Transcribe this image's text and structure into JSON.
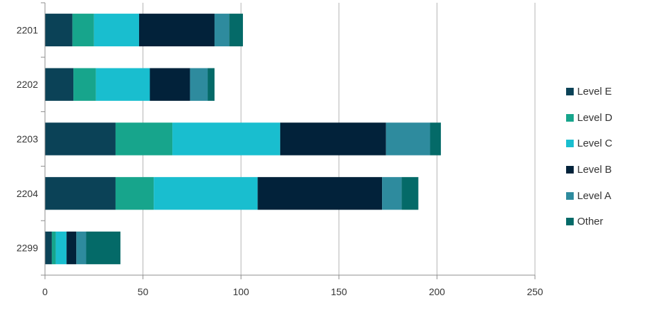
{
  "chart_data": {
    "type": "bar",
    "orientation": "horizontal",
    "stacked": true,
    "categories": [
      "2201",
      "2202",
      "2203",
      "2204",
      "2299"
    ],
    "series": [
      {
        "name": "Level E",
        "color": "#0b4257",
        "values": [
          14,
          14.5,
          36,
          36,
          3.5
        ]
      },
      {
        "name": "Level D",
        "color": "#17a58c",
        "values": [
          11,
          11.5,
          29,
          19.5,
          2
        ]
      },
      {
        "name": "Level C",
        "color": "#19becf",
        "values": [
          23,
          27.5,
          55,
          53,
          5.5
        ]
      },
      {
        "name": "Level B",
        "color": "#02223a",
        "values": [
          38.5,
          20.5,
          54,
          63.5,
          5
        ]
      },
      {
        "name": "Level A",
        "color": "#2e8b9e",
        "values": [
          7.5,
          9,
          22.5,
          10,
          5
        ]
      },
      {
        "name": "Other",
        "color": "#046a68",
        "values": [
          7,
          3.5,
          5.5,
          8.5,
          17.5
        ]
      }
    ],
    "x_ticks": [
      "0",
      "50",
      "100",
      "150",
      "200",
      "250"
    ],
    "xlim": [
      0,
      250
    ],
    "grid": "vertical",
    "legend_position": "right"
  }
}
